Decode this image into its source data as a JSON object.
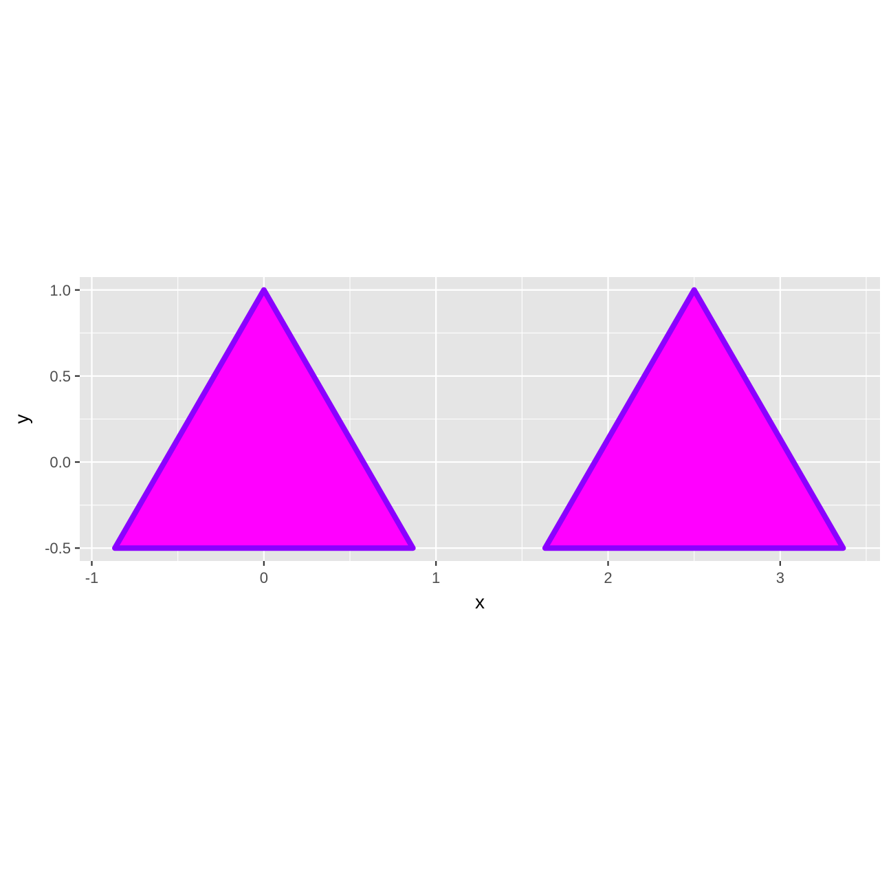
{
  "chart_data": {
    "type": "polygon",
    "xlabel": "x",
    "ylabel": "y",
    "xlim": [
      -1.07,
      3.58
    ],
    "ylim": [
      -0.575,
      1.075
    ],
    "x_ticks": [
      -1,
      0,
      1,
      2,
      3
    ],
    "x_tick_labels": [
      "-1",
      "0",
      "1",
      "2",
      "3"
    ],
    "y_ticks": [
      -0.5,
      0,
      0.5,
      1
    ],
    "y_tick_labels": [
      "-0.5",
      "0.0",
      "0.5",
      "1.0"
    ],
    "grid": true,
    "polygons": [
      {
        "points": [
          [
            -0.866,
            -0.5
          ],
          [
            0.866,
            -0.5
          ],
          [
            0,
            1
          ]
        ]
      },
      {
        "points": [
          [
            1.634,
            -0.5
          ],
          [
            3.366,
            -0.5
          ],
          [
            2.5,
            1
          ]
        ]
      }
    ],
    "colors": {
      "fill": "#FF00FF",
      "stroke": "#8B00FF",
      "panel": "#E5E5E5",
      "grid": "#FFFFFF",
      "ticks": "#333333"
    }
  }
}
